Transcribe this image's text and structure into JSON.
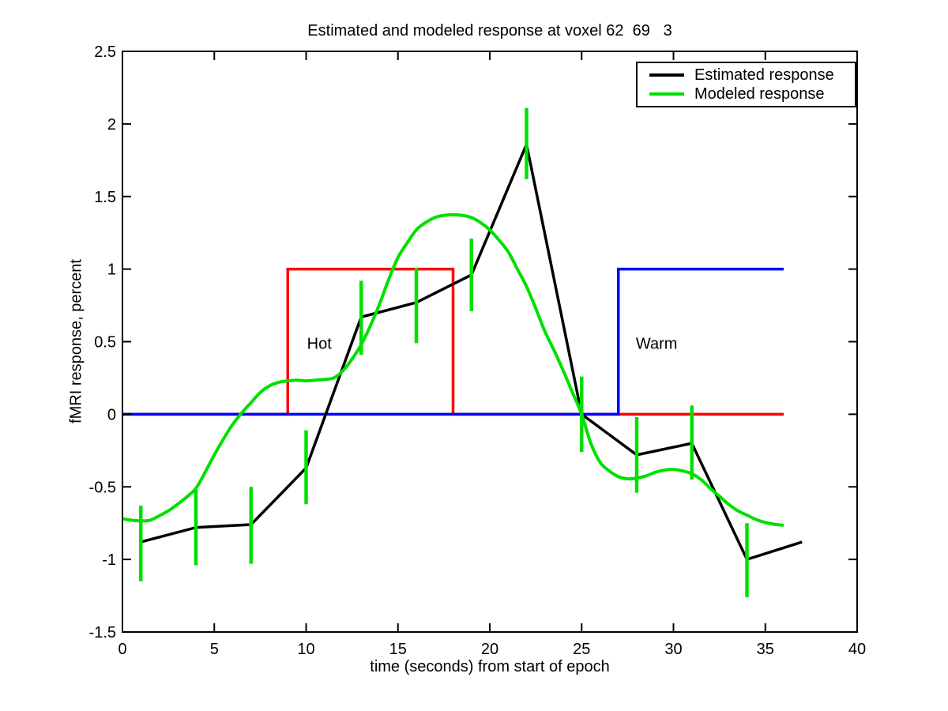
{
  "chart_data": {
    "type": "line",
    "title": "Estimated and modeled response at voxel 62  69   3",
    "xlabel": "time (seconds) from start of epoch",
    "ylabel": "fMRI response, percent",
    "xlim": [
      0,
      40
    ],
    "ylim": [
      -1.5,
      2.5
    ],
    "xticks": [
      0,
      5,
      10,
      15,
      20,
      25,
      30,
      35,
      40
    ],
    "yticks": [
      -1.5,
      -1,
      -0.5,
      0,
      0.5,
      1,
      1.5,
      2,
      2.5
    ],
    "grid": false,
    "axis_color": "#000000",
    "background": "#ffffff",
    "legend": {
      "position": "top-right",
      "entries": [
        {
          "label": "Estimated response",
          "color": "#000000"
        },
        {
          "label": "Modeled response",
          "color": "#00e000"
        }
      ]
    },
    "layers": [
      {
        "id": "hot-stimulus",
        "kind": "line",
        "color": "#ff0000",
        "width": 3.5,
        "smooth": false,
        "points": [
          [
            0,
            0
          ],
          [
            9,
            0
          ],
          [
            9,
            1
          ],
          [
            18,
            1
          ],
          [
            18,
            0
          ],
          [
            36,
            0
          ]
        ]
      },
      {
        "id": "warm-stimulus",
        "kind": "line",
        "color": "#0000ff",
        "width": 3.5,
        "smooth": false,
        "points": [
          [
            0,
            0
          ],
          [
            27,
            0
          ],
          [
            27,
            1
          ],
          [
            36,
            1
          ]
        ]
      },
      {
        "id": "estimated-response",
        "kind": "line",
        "color": "#000000",
        "width": 3.5,
        "smooth": false,
        "points": [
          [
            1,
            -0.88
          ],
          [
            4,
            -0.78
          ],
          [
            7,
            -0.76
          ],
          [
            10,
            -0.37
          ],
          [
            13,
            0.67
          ],
          [
            16,
            0.77
          ],
          [
            19,
            0.96
          ],
          [
            22,
            1.86
          ],
          [
            25,
            0.0
          ],
          [
            28,
            -0.28
          ],
          [
            31,
            -0.2
          ],
          [
            34,
            -1.0
          ],
          [
            37,
            -0.88
          ]
        ]
      },
      {
        "id": "error-bars",
        "kind": "errorbar",
        "color": "#00e000",
        "width": 4.5,
        "bars": [
          [
            1,
            -1.15,
            -0.63
          ],
          [
            4,
            -1.04,
            -0.52
          ],
          [
            7,
            -1.03,
            -0.5
          ],
          [
            10,
            -0.62,
            -0.11
          ],
          [
            13,
            0.41,
            0.92
          ],
          [
            16,
            0.49,
            1.01
          ],
          [
            19,
            0.71,
            1.21
          ],
          [
            22,
            1.62,
            2.11
          ],
          [
            25,
            -0.26,
            0.26
          ],
          [
            28,
            -0.54,
            -0.02
          ],
          [
            31,
            -0.45,
            0.06
          ],
          [
            34,
            -1.26,
            -0.75
          ]
        ]
      },
      {
        "id": "modeled-response",
        "kind": "line",
        "color": "#00e000",
        "width": 4,
        "smooth": true,
        "points": [
          [
            0,
            -0.72
          ],
          [
            0.5,
            -0.73
          ],
          [
            1,
            -0.735
          ],
          [
            1.5,
            -0.73
          ],
          [
            2,
            -0.7
          ],
          [
            2.5,
            -0.665
          ],
          [
            3,
            -0.62
          ],
          [
            3.5,
            -0.57
          ],
          [
            4,
            -0.51
          ],
          [
            4.5,
            -0.4
          ],
          [
            5,
            -0.28
          ],
          [
            5.5,
            -0.17
          ],
          [
            6,
            -0.07
          ],
          [
            6.5,
            0.01
          ],
          [
            7,
            0.08
          ],
          [
            7.5,
            0.15
          ],
          [
            8,
            0.195
          ],
          [
            8.5,
            0.22
          ],
          [
            9,
            0.23
          ],
          [
            9.5,
            0.235
          ],
          [
            10,
            0.23
          ],
          [
            10.5,
            0.235
          ],
          [
            11,
            0.24
          ],
          [
            11.5,
            0.25
          ],
          [
            12,
            0.3
          ],
          [
            12.5,
            0.38
          ],
          [
            13,
            0.48
          ],
          [
            13.5,
            0.61
          ],
          [
            14,
            0.76
          ],
          [
            14.5,
            0.93
          ],
          [
            15,
            1.08
          ],
          [
            15.5,
            1.18
          ],
          [
            16,
            1.27
          ],
          [
            16.5,
            1.32
          ],
          [
            17,
            1.355
          ],
          [
            17.5,
            1.37
          ],
          [
            18,
            1.375
          ],
          [
            18.5,
            1.37
          ],
          [
            19,
            1.355
          ],
          [
            19.5,
            1.32
          ],
          [
            20,
            1.27
          ],
          [
            20.5,
            1.2
          ],
          [
            21,
            1.12
          ],
          [
            21.5,
            1.0
          ],
          [
            22,
            0.88
          ],
          [
            22.5,
            0.73
          ],
          [
            23,
            0.57
          ],
          [
            23.5,
            0.44
          ],
          [
            24,
            0.3
          ],
          [
            24.5,
            0.15
          ],
          [
            25,
            0.0
          ],
          [
            25.5,
            -0.2
          ],
          [
            26,
            -0.33
          ],
          [
            26.5,
            -0.39
          ],
          [
            27,
            -0.43
          ],
          [
            27.5,
            -0.445
          ],
          [
            28,
            -0.44
          ],
          [
            28.5,
            -0.425
          ],
          [
            29,
            -0.4
          ],
          [
            29.5,
            -0.385
          ],
          [
            30,
            -0.38
          ],
          [
            30.5,
            -0.39
          ],
          [
            31,
            -0.41
          ],
          [
            31.5,
            -0.45
          ],
          [
            32,
            -0.51
          ],
          [
            32.5,
            -0.565
          ],
          [
            33,
            -0.62
          ],
          [
            33.5,
            -0.665
          ],
          [
            34,
            -0.695
          ],
          [
            34.5,
            -0.725
          ],
          [
            35,
            -0.745
          ],
          [
            35.5,
            -0.758
          ],
          [
            36,
            -0.765
          ]
        ]
      }
    ],
    "annotations": [
      {
        "id": "hot-label",
        "text": "Hot",
        "x": 10.05,
        "y": 0.49
      },
      {
        "id": "warm-label",
        "text": "Warm",
        "x": 27.95,
        "y": 0.49
      }
    ]
  }
}
